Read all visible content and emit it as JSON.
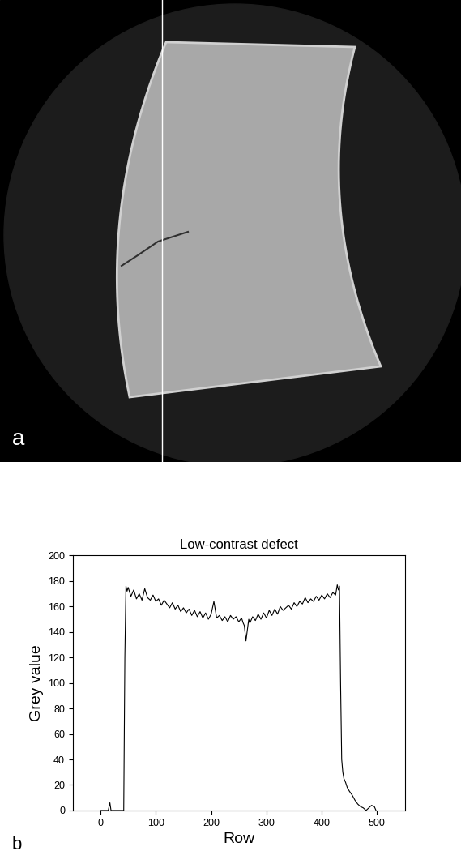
{
  "image_label": "a",
  "chart_label": "b",
  "chart_data": {
    "type": "line",
    "title": "Low-contrast defect",
    "x_label": "Row",
    "y_label": "Grey value",
    "color": "#000000",
    "x": [
      0,
      5,
      10,
      14,
      17,
      19,
      25,
      30,
      35,
      40,
      42,
      44,
      46,
      48,
      50,
      55,
      60,
      65,
      70,
      75,
      80,
      85,
      90,
      95,
      100,
      105,
      110,
      115,
      120,
      125,
      130,
      135,
      140,
      145,
      150,
      155,
      160,
      165,
      170,
      175,
      180,
      185,
      190,
      195,
      200,
      205,
      210,
      215,
      220,
      225,
      230,
      235,
      240,
      245,
      250,
      255,
      258,
      260,
      263,
      265,
      268,
      270,
      275,
      280,
      285,
      290,
      295,
      300,
      305,
      310,
      315,
      320,
      325,
      330,
      335,
      340,
      345,
      350,
      355,
      360,
      365,
      370,
      375,
      380,
      385,
      390,
      395,
      400,
      405,
      410,
      415,
      420,
      425,
      428,
      430,
      432,
      434,
      436,
      438,
      440,
      443,
      446,
      450,
      455,
      460,
      465,
      470,
      475,
      480,
      485,
      490,
      495,
      498
    ],
    "values": [
      0,
      0,
      0,
      0,
      6,
      0,
      0,
      0,
      0,
      0,
      0,
      120,
      176,
      172,
      175,
      168,
      173,
      166,
      170,
      165,
      174,
      167,
      165,
      169,
      164,
      166,
      161,
      165,
      162,
      159,
      163,
      158,
      161,
      156,
      159,
      155,
      158,
      153,
      157,
      152,
      156,
      151,
      155,
      150,
      154,
      164,
      151,
      153,
      149,
      152,
      148,
      153,
      150,
      152,
      148,
      151,
      147,
      145,
      133,
      140,
      150,
      147,
      152,
      149,
      154,
      150,
      155,
      151,
      157,
      153,
      158,
      154,
      160,
      157,
      159,
      161,
      158,
      163,
      160,
      164,
      162,
      167,
      163,
      166,
      164,
      168,
      165,
      169,
      166,
      170,
      167,
      171,
      169,
      177,
      173,
      176,
      100,
      40,
      30,
      25,
      22,
      18,
      15,
      12,
      8,
      5,
      3,
      2,
      0,
      2,
      4,
      3,
      0
    ],
    "xlim": [
      -50,
      550
    ],
    "xticks": [
      0,
      100,
      200,
      300,
      400,
      500
    ],
    "ylim": [
      0,
      200
    ],
    "yticks": [
      0,
      20,
      40,
      60,
      80,
      100,
      120,
      140,
      160,
      180,
      200
    ],
    "grid": false
  }
}
